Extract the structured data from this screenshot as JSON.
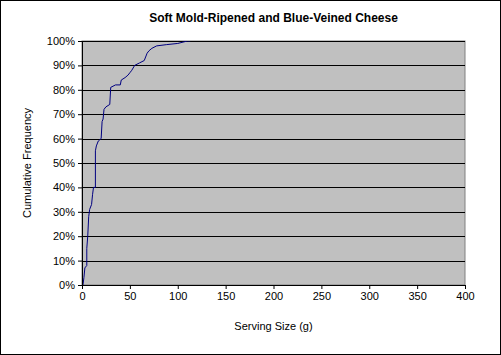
{
  "chart_data": {
    "type": "line",
    "title": "Soft Mold-Ripened and Blue-Veined Cheese",
    "x_label": "Serving Size (g)",
    "y_label": "Cumulative Frequency",
    "x": [
      1,
      2,
      3,
      5,
      5,
      6,
      7,
      8,
      10,
      11,
      12,
      14,
      14,
      15,
      17,
      20,
      21,
      22,
      23,
      25,
      29,
      30,
      35,
      40,
      41,
      45,
      48,
      50,
      52,
      55,
      60,
      65,
      68,
      70,
      73,
      78,
      88,
      100,
      110,
      113
    ],
    "series": [
      {
        "color": "#000080",
        "values": [
          0,
          3,
          7,
          8,
          15,
          20,
          28,
          31,
          33,
          37,
          40,
          40,
          55,
          57,
          59,
          60,
          67,
          68,
          72,
          73,
          74,
          81,
          82,
          82,
          84,
          85,
          86,
          87,
          88,
          90,
          91,
          92,
          95,
          96,
          97,
          98,
          98.5,
          99,
          100,
          100
        ]
      }
    ],
    "xlim": [
      0,
      400
    ],
    "xticks": [
      0,
      50,
      100,
      150,
      200,
      250,
      300,
      350,
      400
    ],
    "ylim": [
      0,
      100
    ],
    "yticks": [
      {
        "value": 0,
        "label": "0%"
      },
      {
        "value": 10,
        "label": "10%"
      },
      {
        "value": 20,
        "label": "20%"
      },
      {
        "value": 30,
        "label": "30%"
      },
      {
        "value": 40,
        "label": "40%"
      },
      {
        "value": 50,
        "label": "50%"
      },
      {
        "value": 60,
        "label": "60%"
      },
      {
        "value": 70,
        "label": "70%"
      },
      {
        "value": 80,
        "label": "80%"
      },
      {
        "value": 90,
        "label": "90%"
      },
      {
        "value": 100,
        "label": "100%"
      }
    ],
    "grid": true
  }
}
